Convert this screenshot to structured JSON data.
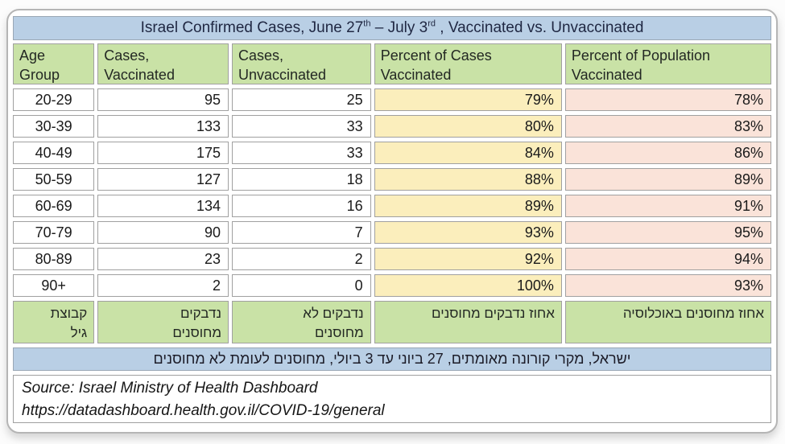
{
  "title": {
    "part1": "Israel Confirmed Cases, June 27",
    "sup1": "th",
    "part2": " – July 3",
    "sup2": "rd",
    "part3": " , Vaccinated vs. Unvaccinated"
  },
  "table": {
    "headers_display": [
      "Age\nGroup",
      "Cases,\nVaccinated",
      "Cases,\nUnvaccinated",
      "Percent of Cases\nVaccinated",
      "Percent of Population\nVaccinated"
    ],
    "hebrew_headers_display": [
      "קבוצת\nגיל",
      "נדבקים\nמחוסנים",
      "נדבקים לא\nמחוסנים",
      "אחוז נדבקים מחוסנים",
      "אחוז מחוסנים באוכלוסיה"
    ]
  },
  "caption_hebrew": "ישראל, מקרי קורונה מאומתים, 27 ביוני עד 3 ביולי, מחוסנים לעומת לא מחוסנים",
  "source": {
    "line1": "Source: Israel Ministry of Health Dashboard",
    "line2": "https://datadashboard.health.gov.il/COVID-19/general"
  },
  "colors": {
    "title_bar_blue": "#b9cfe5",
    "header_green": "#c9e2a6",
    "percent_cases_yellow": "#fbeebc",
    "percent_population_pink": "#fae3d9",
    "caption_bar_blue": "#b9cfe5",
    "card_border_gray": "#b5b5b5"
  },
  "chart_data": {
    "type": "table",
    "title": "Israel Confirmed Cases, June 27th – July 3rd, Vaccinated vs. Unvaccinated",
    "columns": [
      "Age Group",
      "Cases, Vaccinated",
      "Cases, Unvaccinated",
      "Percent of Cases Vaccinated",
      "Percent of Population Vaccinated"
    ],
    "columns_hebrew": [
      "קבוצת גיל",
      "נדבקים מחוסנים",
      "נדבקים לא מחוסנים",
      "אחוז נדבקים מחוסנים",
      "אחוז מחוסנים באוכלוסיה"
    ],
    "rows": [
      [
        "20-29",
        "95",
        "25",
        "79%",
        "78%"
      ],
      [
        "30-39",
        "133",
        "33",
        "80%",
        "83%"
      ],
      [
        "40-49",
        "175",
        "33",
        "84%",
        "86%"
      ],
      [
        "50-59",
        "127",
        "18",
        "88%",
        "89%"
      ],
      [
        "60-69",
        "134",
        "16",
        "89%",
        "91%"
      ],
      [
        "70-79",
        "90",
        "7",
        "93%",
        "95%"
      ],
      [
        "80-89",
        "23",
        "2",
        "92%",
        "94%"
      ],
      [
        "90+",
        "2",
        "0",
        "100%",
        "93%"
      ]
    ],
    "caption_hebrew": "ישראל, מקרי קורונה מאומתים, 27 ביוני עד 3 ביולי, מחוסנים לעומת לא מחוסנים",
    "source": "Israel Ministry of Health Dashboard — https://datadashboard.health.gov.il/COVID-19/general"
  }
}
